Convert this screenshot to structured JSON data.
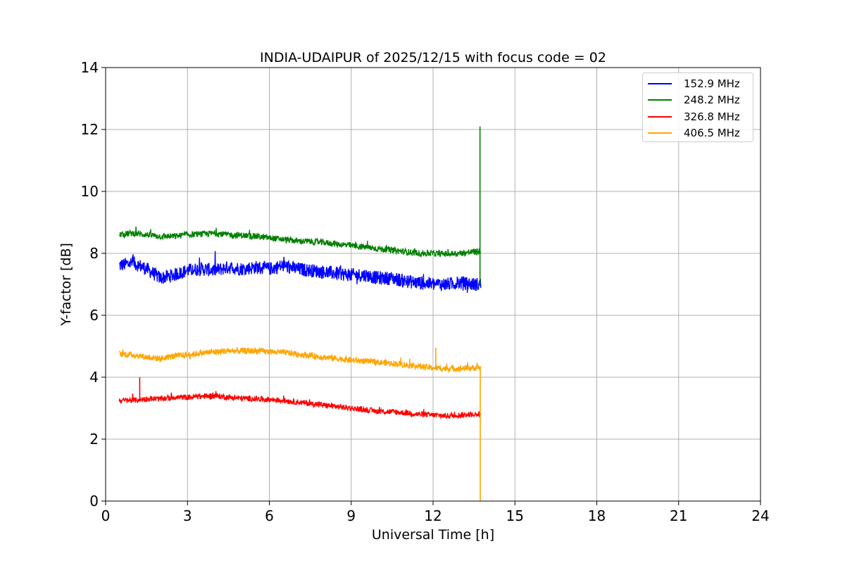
{
  "chart_data": {
    "type": "line",
    "title": "INDIA-UDAIPUR of 2025/12/15 with focus code = 02",
    "xlabel": "Universal Time [h]",
    "ylabel": "Y-factor [dB]",
    "xlim": [
      0,
      24
    ],
    "ylim": [
      0,
      14
    ],
    "xticks": [
      "0",
      "3",
      "6",
      "9",
      "12",
      "15",
      "18",
      "21",
      "24"
    ],
    "yticks": [
      "0",
      "2",
      "4",
      "6",
      "8",
      "10",
      "12",
      "14"
    ],
    "grid": true,
    "legend_position": "top-right",
    "series": [
      {
        "name": "152.9 MHz",
        "color": "#0000ff",
        "x": [
          0.5,
          1.0,
          1.5,
          2.0,
          2.5,
          3.0,
          3.5,
          4.0,
          4.5,
          5.0,
          5.5,
          6.0,
          6.5,
          7.0,
          7.5,
          8.0,
          8.5,
          9.0,
          9.5,
          10.0,
          10.5,
          11.0,
          11.5,
          12.0,
          12.5,
          13.0,
          13.5,
          13.75
        ],
        "values": [
          7.6,
          7.7,
          7.5,
          7.2,
          7.3,
          7.45,
          7.5,
          7.45,
          7.55,
          7.5,
          7.55,
          7.5,
          7.6,
          7.5,
          7.45,
          7.4,
          7.35,
          7.3,
          7.3,
          7.2,
          7.2,
          7.1,
          7.05,
          7.0,
          7.0,
          7.05,
          7.0,
          7.0
        ],
        "noise": 0.22
      },
      {
        "name": "248.2 MHz",
        "color": "#008000",
        "x": [
          0.5,
          1.0,
          1.5,
          2.0,
          2.5,
          3.0,
          3.5,
          4.0,
          4.5,
          5.0,
          5.5,
          6.0,
          6.5,
          7.0,
          7.5,
          8.0,
          8.5,
          9.0,
          9.5,
          10.0,
          10.5,
          11.0,
          11.5,
          12.0,
          12.5,
          13.0,
          13.5,
          13.75
        ],
        "values": [
          8.6,
          8.65,
          8.6,
          8.55,
          8.55,
          8.6,
          8.62,
          8.65,
          8.6,
          8.58,
          8.55,
          8.5,
          8.45,
          8.4,
          8.38,
          8.35,
          8.3,
          8.25,
          8.2,
          8.15,
          8.1,
          8.05,
          8.0,
          8.0,
          7.98,
          8.0,
          8.05,
          8.05
        ],
        "noise": 0.1
      },
      {
        "name": "326.8 MHz",
        "color": "#ff0000",
        "x": [
          0.5,
          1.0,
          1.5,
          2.0,
          2.5,
          3.0,
          3.5,
          4.0,
          4.5,
          5.0,
          5.5,
          6.0,
          6.5,
          7.0,
          7.5,
          8.0,
          8.5,
          9.0,
          9.5,
          10.0,
          10.5,
          11.0,
          11.5,
          12.0,
          12.5,
          13.0,
          13.5,
          13.75
        ],
        "values": [
          3.25,
          3.25,
          3.3,
          3.3,
          3.35,
          3.35,
          3.38,
          3.4,
          3.35,
          3.32,
          3.3,
          3.28,
          3.25,
          3.2,
          3.15,
          3.1,
          3.05,
          3.0,
          2.95,
          2.9,
          2.88,
          2.85,
          2.8,
          2.78,
          2.75,
          2.78,
          2.8,
          2.8
        ],
        "noise": 0.09
      },
      {
        "name": "406.5 MHz",
        "color": "#ffa500",
        "x": [
          0.5,
          1.0,
          1.5,
          2.0,
          2.5,
          3.0,
          3.5,
          4.0,
          4.5,
          5.0,
          5.5,
          6.0,
          6.5,
          7.0,
          7.5,
          8.0,
          8.5,
          9.0,
          9.5,
          10.0,
          10.5,
          11.0,
          11.5,
          12.0,
          12.5,
          13.0,
          13.5,
          13.75
        ],
        "values": [
          4.75,
          4.72,
          4.65,
          4.6,
          4.68,
          4.72,
          4.78,
          4.82,
          4.85,
          4.85,
          4.85,
          4.82,
          4.8,
          4.75,
          4.7,
          4.65,
          4.6,
          4.55,
          4.52,
          4.48,
          4.45,
          4.4,
          4.35,
          4.3,
          4.28,
          4.28,
          4.3,
          4.3
        ],
        "noise": 0.1
      }
    ],
    "annotations": [
      {
        "series": "248.2 MHz",
        "x": 13.72,
        "y_from": 7.0,
        "y_to": 12.1,
        "note": "spike"
      },
      {
        "series": "406.5 MHz",
        "x": 13.73,
        "y_from": 4.3,
        "y_to": 0.0,
        "note": "drop"
      },
      {
        "series": "326.8 MHz",
        "x": 1.25,
        "y_from": 3.3,
        "y_to": 4.0,
        "note": "spike"
      },
      {
        "series": "406.5 MHz",
        "x": 12.1,
        "y_from": 4.3,
        "y_to": 4.95,
        "note": "spike"
      }
    ]
  }
}
